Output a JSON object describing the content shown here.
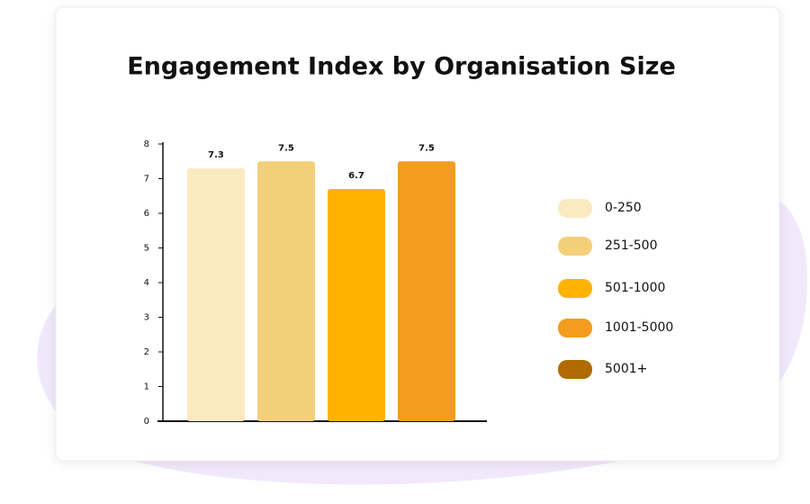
{
  "chart_data": {
    "type": "bar",
    "title": "Engagement Index by Organisation Size",
    "categories": [
      "0-250",
      "251-500",
      "501-1000",
      "1001-5000",
      "5001+"
    ],
    "values": [
      7.3,
      7.5,
      6.7,
      7.5,
      null
    ],
    "colors": [
      "#fbe9c0",
      "#f4cf7a",
      "#ffb300",
      "#f39c1e",
      "#b06a00"
    ],
    "ylim": [
      0,
      8
    ],
    "yticks": [
      0,
      1,
      2,
      3,
      4,
      5,
      6,
      7,
      8
    ],
    "grid": false,
    "legend": "right"
  }
}
